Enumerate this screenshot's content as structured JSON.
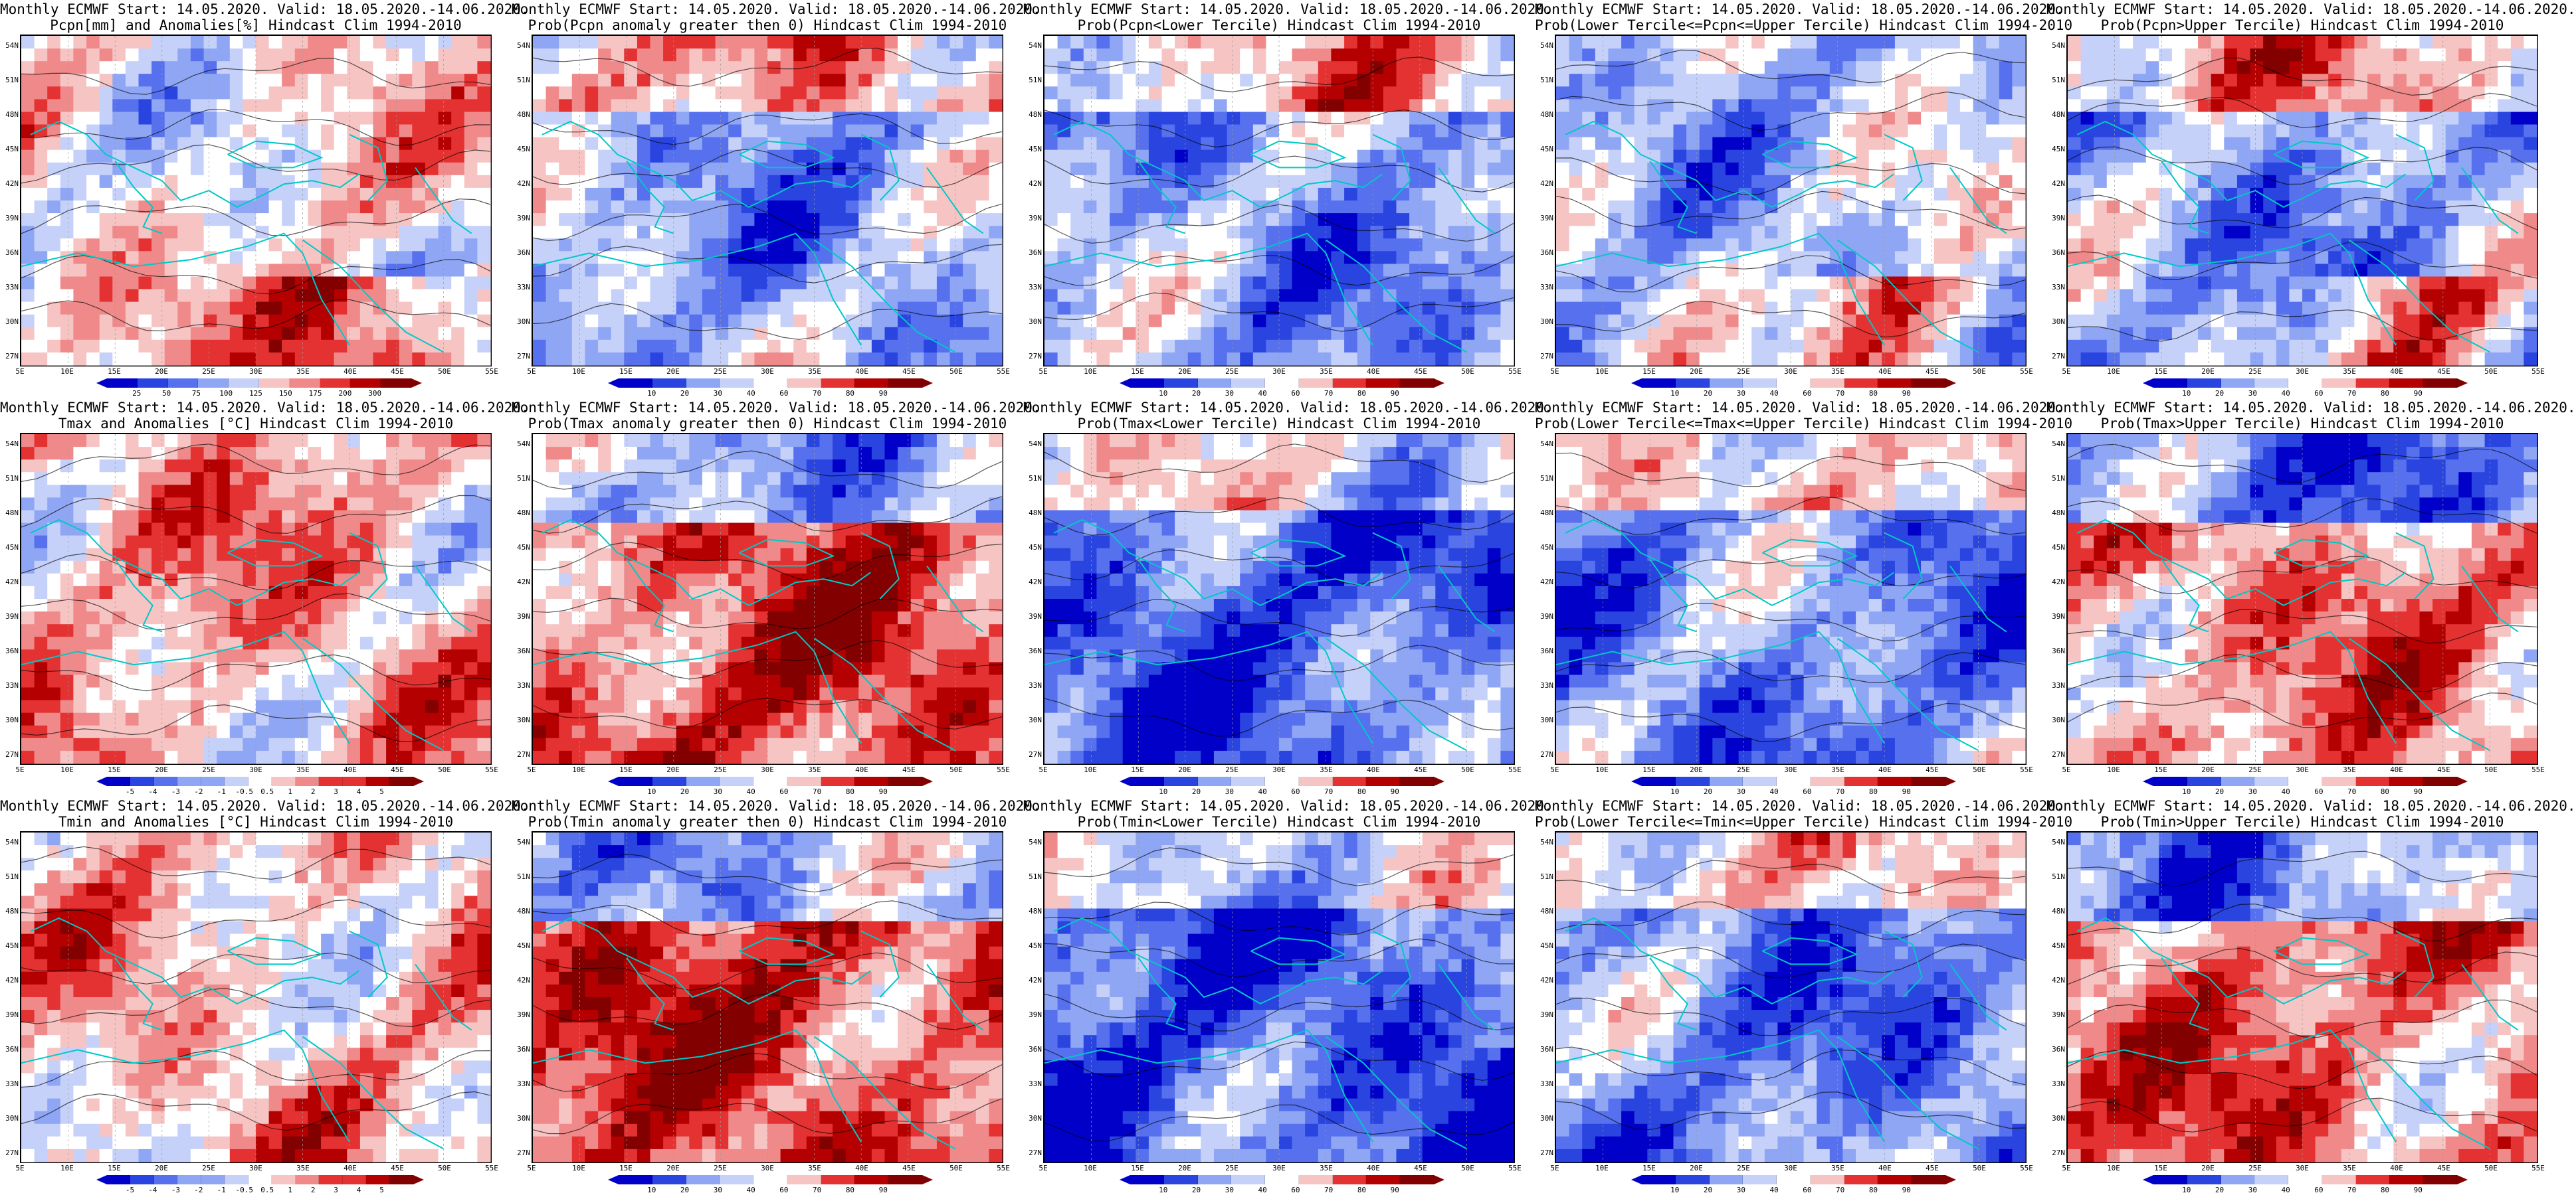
{
  "page": {
    "columns": 5,
    "rows": 3
  },
  "colors": {
    "deep_blue": "#0000c8",
    "blue": "#2a44e0",
    "mid_blue": "#5670ee",
    "light_blue": "#8fa6f5",
    "pale_blue": "#c6d1fa",
    "white": "#ffffff",
    "pale_red": "#f7c4c4",
    "light_red": "#f08a8a",
    "red": "#e43232",
    "dark_red": "#b40000",
    "deep_red": "#820000",
    "coast": "#00c8c8",
    "contour": "#000000"
  },
  "axes": {
    "lat_labels": [
      "54N",
      "51N",
      "48N",
      "45N",
      "42N",
      "39N",
      "36N",
      "33N",
      "30N",
      "27N"
    ],
    "lon_labels": [
      "5E",
      "10E",
      "15E",
      "20E",
      "25E",
      "30E",
      "35E",
      "40E",
      "45E",
      "50E",
      "55E"
    ]
  },
  "colorbars": {
    "pcpn_anom": {
      "labels": [
        "25",
        "50",
        "75",
        "100",
        "125",
        "150",
        "175",
        "200",
        "300"
      ]
    },
    "prob": {
      "labels": [
        "10",
        "20",
        "30",
        "40",
        "60",
        "70",
        "80",
        "90"
      ]
    },
    "temp_anom": {
      "labels": [
        "-5",
        "-4",
        "-3",
        "-2",
        "-1",
        "-0.5",
        "0.5",
        "1",
        "2",
        "3",
        "4",
        "5"
      ]
    }
  },
  "panels": [
    {
      "id": "pcpn-anom",
      "title1": "Monthly ECMWF Start: 14.05.2020. Valid: 18.05.2020.-14.06.2020.",
      "title2": "Pcpn[mm] and Anomalies[%] Hindcast Clim 1994-2010",
      "bar": "pcpn_anom",
      "bias": 0.05,
      "seed": 11,
      "southRed": true
    },
    {
      "id": "pcpn-prob-pos",
      "title1": "Monthly ECMWF Start: 14.05.2020. Valid: 18.05.2020.-14.06.2020.",
      "title2": "Prob(Pcpn anomaly greater then 0) Hindcast Clim 1994-2010",
      "bar": "prob",
      "bias": -0.35,
      "seed": 12,
      "southRed": false
    },
    {
      "id": "pcpn-prob-lower",
      "title1": "Monthly ECMWF Start: 14.05.2020. Valid: 18.05.2020.-14.06.2020.",
      "title2": "Prob(Pcpn<Lower Tercile) Hindcast Clim 1994-2010",
      "bar": "prob",
      "bias": -0.4,
      "seed": 13,
      "southRed": false
    },
    {
      "id": "pcpn-prob-middle",
      "title1": "Monthly ECMWF Start: 14.05.2020. Valid: 18.05.2020.-14.06.2020.",
      "title2": "Prob(Lower Tercile<=Pcpn<=Upper Tercile) Hindcast Clim 1994-2010",
      "bar": "prob",
      "bias": -0.25,
      "seed": 14,
      "southRed": true
    },
    {
      "id": "pcpn-prob-upper",
      "title1": "Monthly ECMWF Start: 14.05.2020. Valid: 18.05.2020.-14.06.2020.",
      "title2": "Prob(Pcpn>Upper Tercile) Hindcast Clim 1994-2010",
      "bar": "prob",
      "bias": -0.35,
      "seed": 15,
      "southRed": true
    },
    {
      "id": "tmax-anom",
      "title1": "Monthly ECMWF Start: 14.05.2020. Valid: 18.05.2020.-14.06.2020.",
      "title2": "Tmax and Anomalies [°C] Hindcast Clim 1994-2010",
      "bar": "temp_anom",
      "bias": 0.25,
      "seed": 21,
      "southRed": false
    },
    {
      "id": "tmax-prob-pos",
      "title1": "Monthly ECMWF Start: 14.05.2020. Valid: 18.05.2020.-14.06.2020.",
      "title2": "Prob(Tmax anomaly greater then 0) Hindcast Clim 1994-2010",
      "bar": "prob",
      "bias": 0.55,
      "seed": 22,
      "southRed": false
    },
    {
      "id": "tmax-prob-lower",
      "title1": "Monthly ECMWF Start: 14.05.2020. Valid: 18.05.2020.-14.06.2020.",
      "title2": "Prob(Tmax<Lower Tercile) Hindcast Clim 1994-2010",
      "bar": "prob",
      "bias": -0.65,
      "seed": 23,
      "southRed": false
    },
    {
      "id": "tmax-prob-middle",
      "title1": "Monthly ECMWF Start: 14.05.2020. Valid: 18.05.2020.-14.06.2020.",
      "title2": "Prob(Lower Tercile<=Tmax<=Upper Tercile) Hindcast Clim 1994-2010",
      "bar": "prob",
      "bias": -0.5,
      "seed": 24,
      "southRed": false
    },
    {
      "id": "tmax-prob-upper",
      "title1": "Monthly ECMWF Start: 14.05.2020. Valid: 18.05.2020.-14.06.2020.",
      "title2": "Prob(Tmax>Upper Tercile) Hindcast Clim 1994-2010",
      "bar": "prob",
      "bias": 0.35,
      "seed": 25,
      "southRed": false
    },
    {
      "id": "tmin-anom",
      "title1": "Monthly ECMWF Start: 14.05.2020. Valid: 18.05.2020.-14.06.2020.",
      "title2": "Tmin and Anomalies [°C] Hindcast Clim 1994-2010",
      "bar": "temp_anom",
      "bias": 0.2,
      "seed": 31,
      "southRed": false
    },
    {
      "id": "tmin-prob-pos",
      "title1": "Monthly ECMWF Start: 14.05.2020. Valid: 18.05.2020.-14.06.2020.",
      "title2": "Prob(Tmin anomaly greater then 0) Hindcast Clim 1994-2010",
      "bar": "prob",
      "bias": 0.6,
      "seed": 32,
      "southRed": false
    },
    {
      "id": "tmin-prob-lower",
      "title1": "Monthly ECMWF Start: 14.05.2020. Valid: 18.05.2020.-14.06.2020.",
      "title2": "Prob(Tmin<Lower Tercile) Hindcast Clim 1994-2010",
      "bar": "prob",
      "bias": -0.7,
      "seed": 33,
      "southRed": false
    },
    {
      "id": "tmin-prob-middle",
      "title1": "Monthly ECMWF Start: 14.05.2020. Valid: 18.05.2020.-14.06.2020.",
      "title2": "Prob(Lower Tercile<=Tmin<=Upper Tercile) Hindcast Clim 1994-2010",
      "bar": "prob",
      "bias": -0.5,
      "seed": 34,
      "southRed": false
    },
    {
      "id": "tmin-prob-upper",
      "title1": "Monthly ECMWF Start: 14.05.2020. Valid: 18.05.2020.-14.06.2020.",
      "title2": "Prob(Tmin>Upper Tercile) Hindcast Clim 1994-2010",
      "bar": "prob",
      "bias": 0.45,
      "seed": 35,
      "southRed": false
    }
  ]
}
